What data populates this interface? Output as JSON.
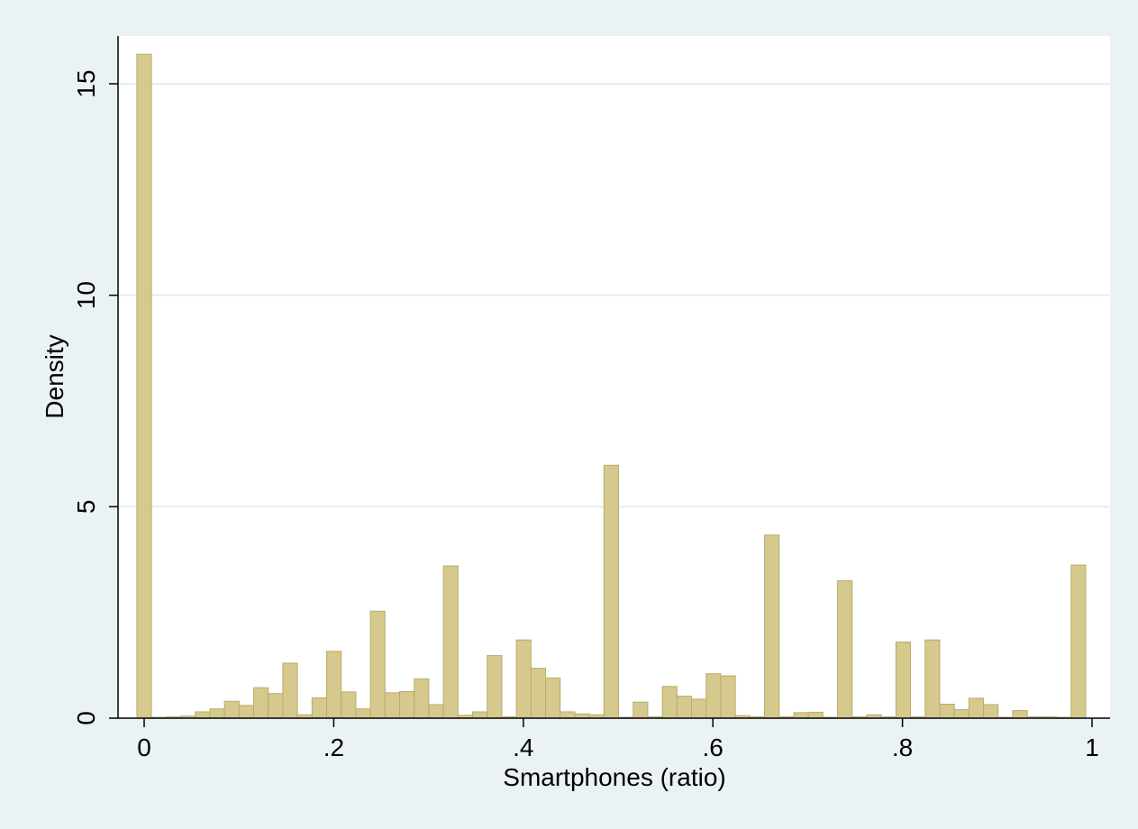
{
  "chart_data": {
    "type": "bar",
    "title": "",
    "xlabel": "Smartphones (ratio)",
    "ylabel": "Density",
    "xlim": [
      0,
      1
    ],
    "ylim": [
      0,
      16
    ],
    "xticks": [
      0,
      0.2,
      0.4,
      0.6,
      0.8,
      1
    ],
    "xtick_labels": [
      "0",
      ".2",
      ".4",
      ".6",
      ".8",
      "1"
    ],
    "yticks": [
      0,
      5,
      10,
      15
    ],
    "ytick_labels": [
      "0",
      "5",
      "10",
      "15"
    ],
    "grid": true,
    "bar_color": "#d5c98d",
    "bar_edge_color": "#b8ac6c",
    "bin_width": 0.0154,
    "bin_start": -0.0077,
    "values": [
      15.7,
      0.02,
      0.03,
      0.05,
      0.15,
      0.22,
      0.4,
      0.3,
      0.72,
      0.58,
      1.3,
      0.08,
      0.48,
      1.58,
      0.62,
      0.22,
      2.53,
      0.6,
      0.63,
      0.93,
      0.32,
      3.6,
      0.07,
      0.15,
      1.48,
      0.03,
      1.85,
      1.18,
      0.95,
      0.15,
      0.1,
      0.08,
      5.98,
      0.02,
      0.38,
      0.03,
      0.75,
      0.52,
      0.45,
      1.05,
      1.0,
      0.06,
      0.03,
      4.33,
      0.03,
      0.13,
      0.14,
      0.02,
      3.25,
      0.03,
      0.08,
      0.03,
      1.8,
      0.03,
      1.85,
      0.33,
      0.2,
      0.47,
      0.32,
      0.02,
      0.18,
      0.03,
      0.03,
      0.02,
      3.62
    ]
  }
}
